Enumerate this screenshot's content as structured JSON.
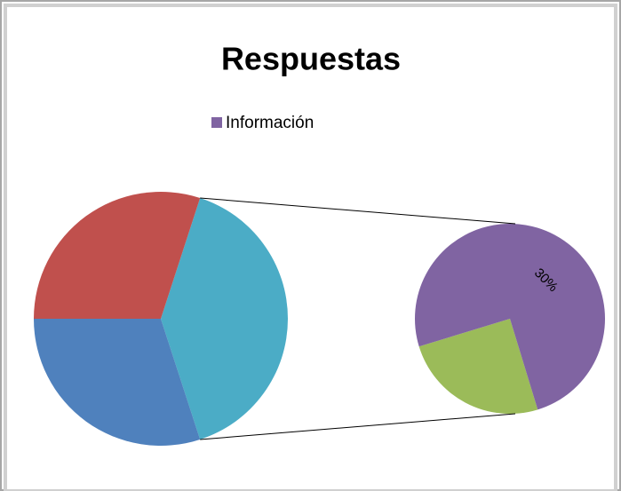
{
  "chart_data": {
    "type": "pie-of-pie",
    "title": "Respuestas",
    "categories": [
      null,
      null,
      null,
      "Información"
    ],
    "values": [
      30,
      30,
      10,
      30
    ],
    "value_labels": [
      null,
      null,
      null,
      "30%"
    ],
    "colors": [
      "#4f81bd",
      "#c0504d",
      "#9bbb59",
      "#8064a2"
    ],
    "other_color": "#4bacc6",
    "split_last": 2,
    "legend": "top"
  }
}
